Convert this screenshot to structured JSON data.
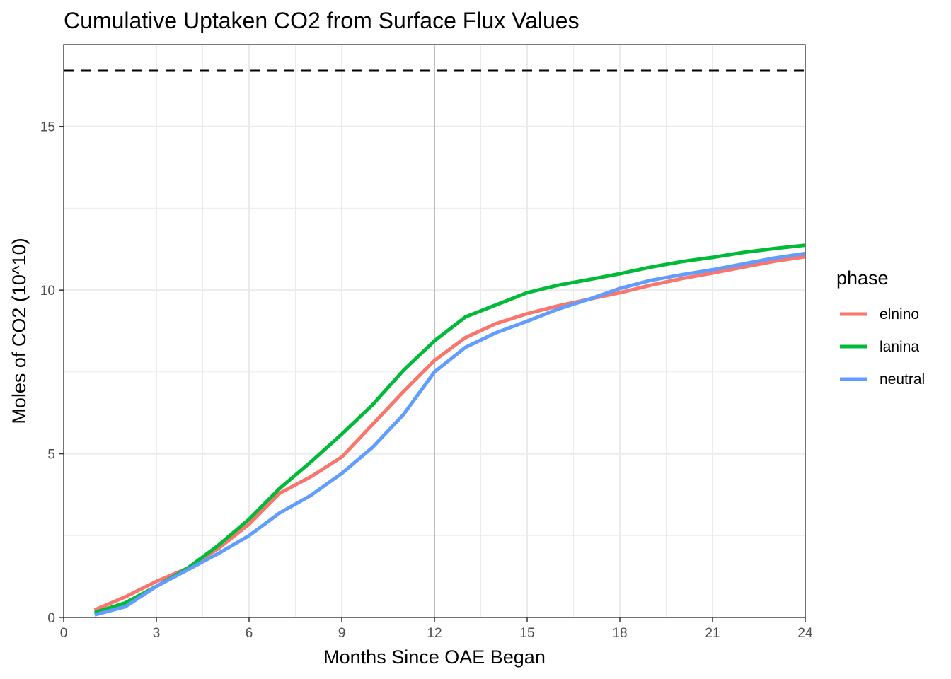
{
  "chart_data": {
    "type": "line",
    "title": "Cumulative Uptaken CO2 from Surface Flux Values",
    "xlabel": "Months Since OAE Began",
    "ylabel": "Moles of CO2 (10^10)",
    "xlim": [
      0,
      24
    ],
    "ylim": [
      0,
      17.5
    ],
    "x_ticks": [
      0,
      3,
      6,
      9,
      12,
      15,
      18,
      21,
      24
    ],
    "y_ticks": [
      0,
      5,
      10,
      15
    ],
    "grid": true,
    "legend_title": "phase",
    "legend_position": "right",
    "reference_lines": {
      "horizontal_dashed_y": 16.7,
      "vertical_x": 12
    },
    "x": [
      1,
      2,
      3,
      4,
      5,
      6,
      7,
      8,
      9,
      10,
      11,
      12,
      13,
      14,
      15,
      16,
      17,
      18,
      19,
      20,
      21,
      22,
      23,
      24
    ],
    "series": [
      {
        "name": "elnino",
        "color": "#F8766D",
        "values": [
          0.23,
          0.63,
          1.1,
          1.5,
          2.1,
          2.85,
          3.8,
          4.3,
          4.9,
          5.9,
          6.9,
          7.85,
          8.55,
          8.98,
          9.28,
          9.52,
          9.72,
          9.92,
          10.15,
          10.35,
          10.52,
          10.7,
          10.88,
          11.02
        ]
      },
      {
        "name": "lanina",
        "color": "#00BA38",
        "values": [
          0.15,
          0.45,
          0.95,
          1.5,
          2.2,
          3.0,
          3.95,
          4.75,
          5.6,
          6.5,
          7.55,
          8.45,
          9.18,
          9.55,
          9.92,
          10.15,
          10.32,
          10.5,
          10.7,
          10.87,
          11.0,
          11.15,
          11.27,
          11.37
        ]
      },
      {
        "name": "neutral",
        "color": "#619CFF",
        "values": [
          0.08,
          0.33,
          0.95,
          1.45,
          1.95,
          2.5,
          3.2,
          3.73,
          4.4,
          5.2,
          6.2,
          7.5,
          8.25,
          8.7,
          9.05,
          9.42,
          9.72,
          10.05,
          10.3,
          10.47,
          10.62,
          10.8,
          10.98,
          11.12
        ]
      }
    ]
  }
}
